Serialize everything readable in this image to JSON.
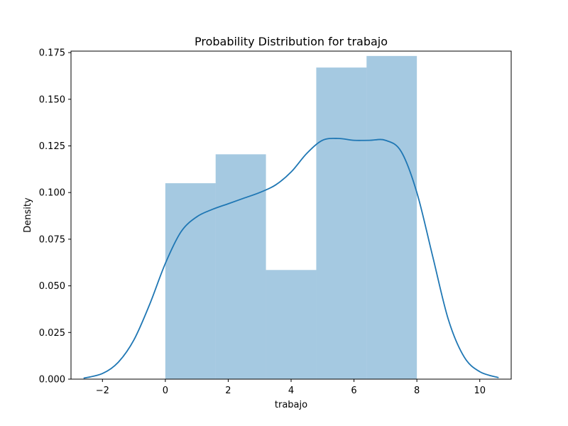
{
  "chart_data": {
    "type": "bar",
    "title": "Probability Distribution for trabajo",
    "xlabel": "trabajo",
    "ylabel": "Density",
    "xlim": [
      -3.0,
      11.0
    ],
    "ylim": [
      0.0,
      0.1758
    ],
    "xticks": [
      -2,
      0,
      2,
      4,
      6,
      8,
      10
    ],
    "xtick_labels": [
      "−2",
      "0",
      "2",
      "4",
      "6",
      "8",
      "10"
    ],
    "yticks": [
      0.0,
      0.025,
      0.05,
      0.075,
      0.1,
      0.125,
      0.15,
      0.175
    ],
    "ytick_labels": [
      "0.000",
      "0.025",
      "0.050",
      "0.075",
      "0.100",
      "0.125",
      "0.150",
      "0.175"
    ],
    "grid": false,
    "colors": {
      "bar": "#1f77b4",
      "bar_opacity": 0.4,
      "kde": "#1f77b4"
    },
    "bins": [
      {
        "x0": 0.0,
        "x1": 1.6,
        "density": 0.105
      },
      {
        "x0": 1.6,
        "x1": 3.2,
        "density": 0.1205
      },
      {
        "x0": 3.2,
        "x1": 4.8,
        "density": 0.0585
      },
      {
        "x0": 4.8,
        "x1": 6.4,
        "density": 0.167
      },
      {
        "x0": 6.4,
        "x1": 8.0,
        "density": 0.1732
      }
    ],
    "kde": {
      "x": [
        -2.6,
        -2.0,
        -1.5,
        -1.0,
        -0.5,
        0.0,
        0.5,
        1.0,
        1.5,
        2.0,
        2.5,
        3.0,
        3.5,
        4.0,
        4.5,
        5.0,
        5.5,
        6.0,
        6.5,
        7.0,
        7.5,
        8.0,
        8.5,
        9.0,
        9.5,
        10.0,
        10.6
      ],
      "y": [
        0.0005,
        0.003,
        0.009,
        0.021,
        0.04,
        0.062,
        0.079,
        0.087,
        0.091,
        0.094,
        0.097,
        0.1,
        0.104,
        0.111,
        0.121,
        0.128,
        0.129,
        0.128,
        0.128,
        0.128,
        0.122,
        0.1,
        0.066,
        0.032,
        0.012,
        0.004,
        0.0008
      ]
    }
  }
}
